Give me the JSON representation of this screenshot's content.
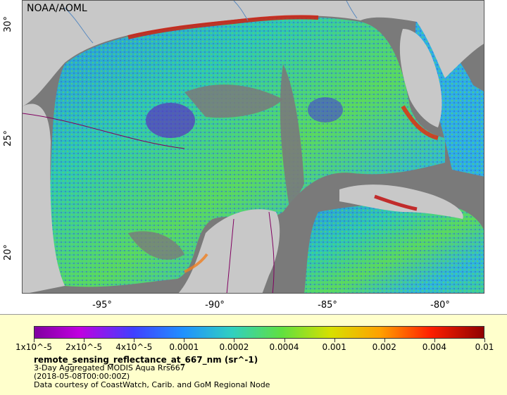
{
  "map": {
    "credit": "NOAA/AOML",
    "lon_ticks": [
      "-95°",
      "-90°",
      "-85°",
      "-80°"
    ],
    "lat_ticks": [
      "30°",
      "25°",
      "20°"
    ],
    "colors": {
      "land": "#c8c8c8",
      "nodata": "#7a7a7a",
      "border": "#800060",
      "river": "#5a8ac0"
    }
  },
  "legend": {
    "colorbar_labels": [
      "1x10^-5",
      "2x10^-5",
      "4x10^-5",
      "0.0001",
      "0.0002",
      "0.0004",
      "0.001",
      "0.002",
      "0.004",
      "0.01"
    ],
    "title": "remote_sensing_reflectance_at_667_nm (sr^-1)",
    "line1": "3-Day Aggregated MODIS Aqua Rrs667",
    "line2": "(2018-05-08T00:00:00Z)",
    "line3": "Data courtesy of CoastWatch, Carib. and GoM Regional Node"
  }
}
